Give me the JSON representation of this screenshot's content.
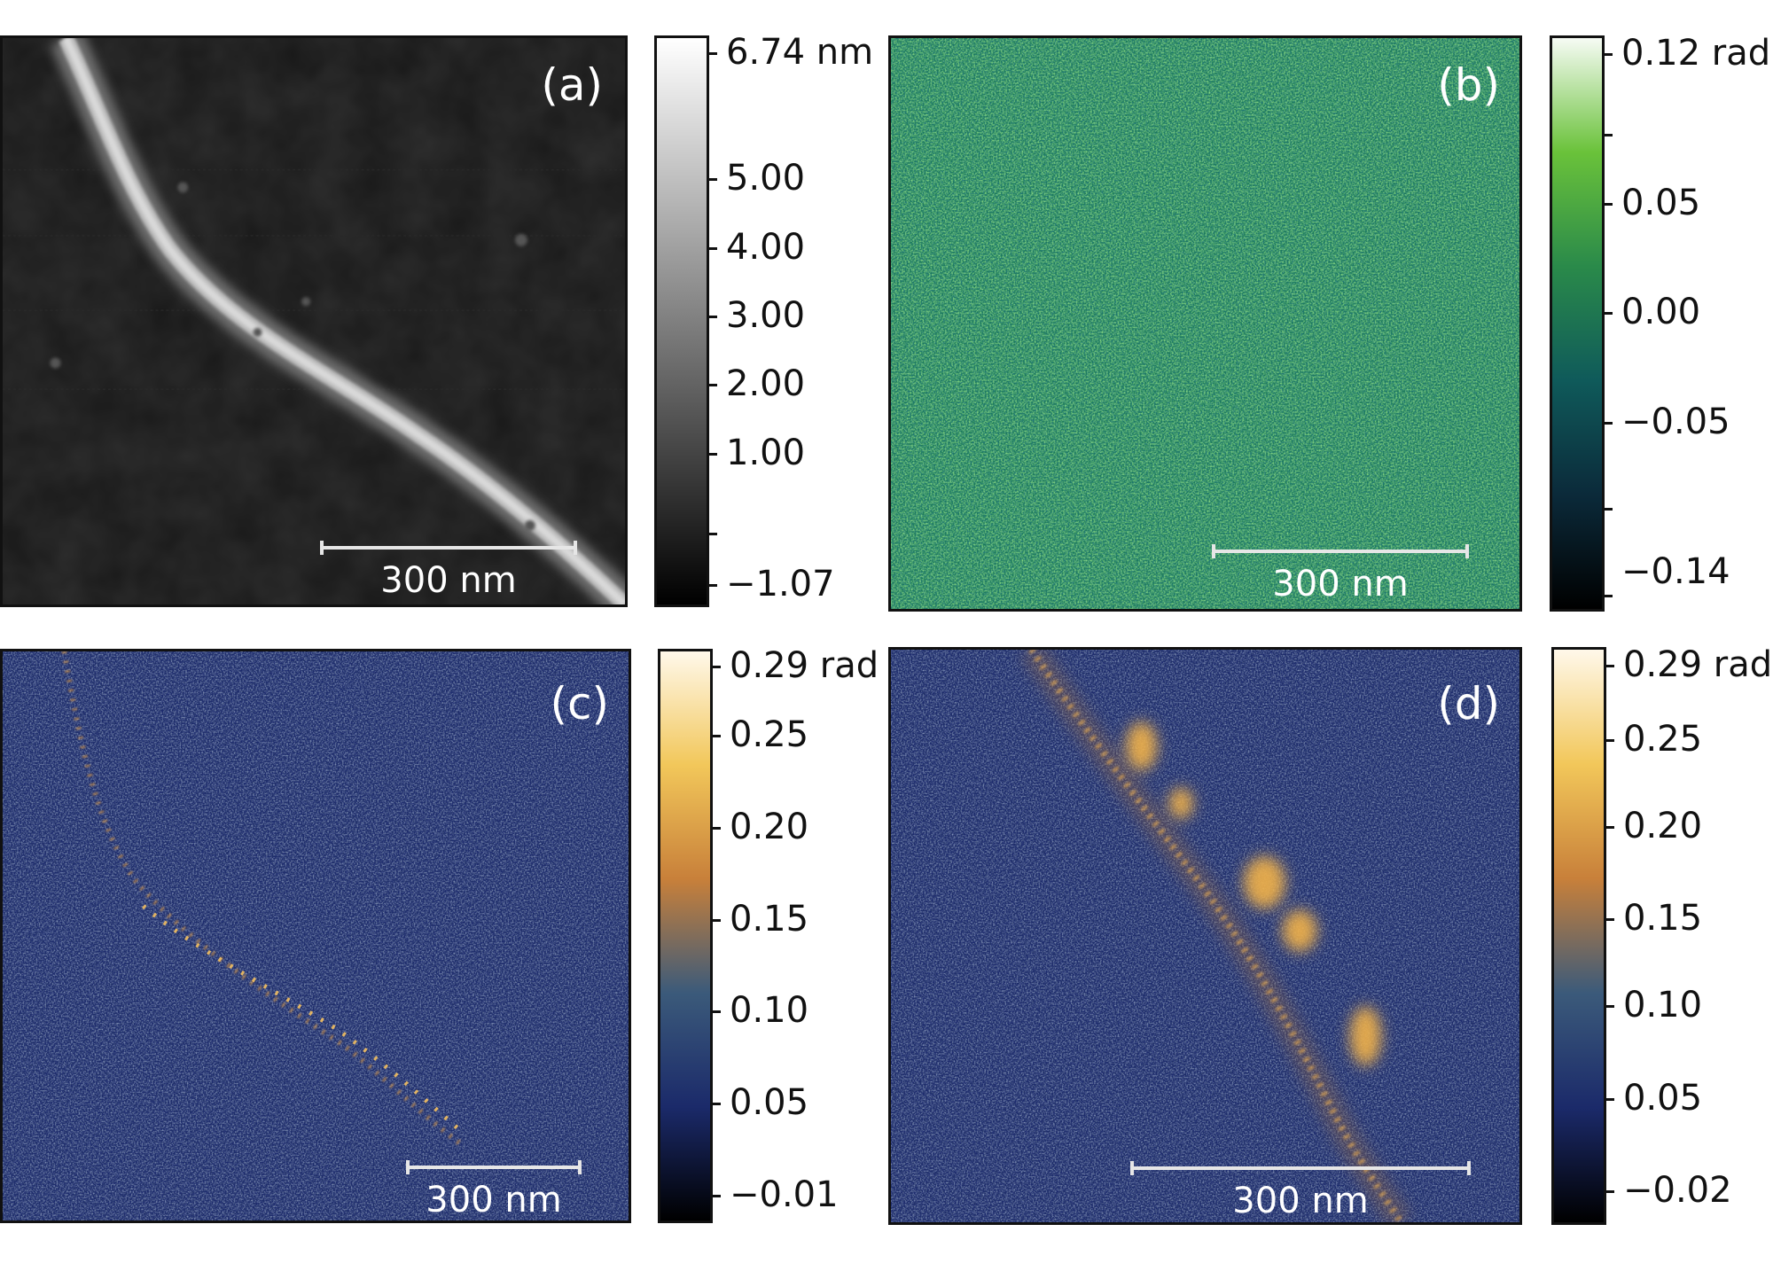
{
  "panels": [
    {
      "label": "(a)",
      "scale_bar": "300 nm",
      "colorbar": {
        "colors": [
          "#000000",
          "#ffffff"
        ],
        "labels": [
          "6.74 nm",
          "5.00",
          "4.00",
          "3.00",
          "2.00",
          "1.00",
          "−1.07"
        ]
      }
    },
    {
      "label": "(b)",
      "scale_bar": "300 nm",
      "colorbar": {
        "colors": [
          "#000000",
          "#0b2a3a",
          "#0f5a5a",
          "#2a8a4a",
          "#6ac23a",
          "#f6fbf4"
        ],
        "labels": [
          "0.12 rad",
          "0.05",
          "0.00",
          "−0.05",
          "−0.14"
        ]
      }
    },
    {
      "label": "(c)",
      "scale_bar": "300 nm",
      "colorbar": {
        "colors": [
          "#000000",
          "#1b2a6a",
          "#3b5a7a",
          "#c8803a",
          "#f2c75a",
          "#fff8ea"
        ],
        "labels": [
          "0.29 rad",
          "0.25",
          "0.20",
          "0.15",
          "0.10",
          "0.05",
          "−0.01"
        ]
      }
    },
    {
      "label": "(d)",
      "scale_bar": "300 nm",
      "colorbar": {
        "colors": [
          "#000000",
          "#1b2a6a",
          "#3b5a7a",
          "#c8803a",
          "#f2c75a",
          "#fff8ea"
        ],
        "labels": [
          "0.29 rad",
          "0.25",
          "0.20",
          "0.15",
          "0.10",
          "0.05",
          "−0.02"
        ]
      }
    }
  ]
}
